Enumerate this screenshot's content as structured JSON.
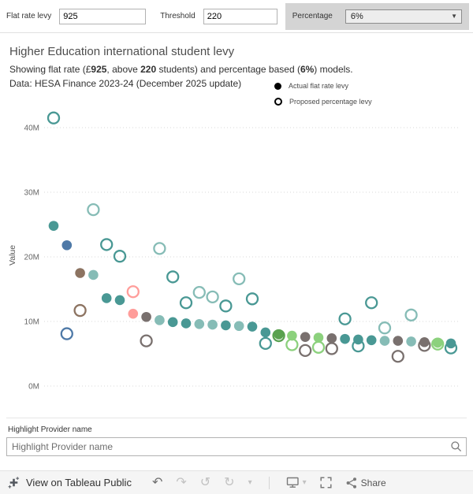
{
  "param_bar": {
    "flat_rate": {
      "label": "Flat rate levy",
      "value": "925"
    },
    "threshold": {
      "label": "Threshold",
      "value": "220"
    },
    "percentage": {
      "label": "Percentage",
      "value": "6%"
    }
  },
  "header": {
    "title": "Higher Education international student levy",
    "subtitle_segments": [
      {
        "text": "Showing flat rate (£",
        "bold": false
      },
      {
        "text": "925",
        "bold": true
      },
      {
        "text": ", above ",
        "bold": false
      },
      {
        "text": "220",
        "bold": true
      },
      {
        "text": " students) and percentage based (",
        "bold": false
      },
      {
        "text": "6%",
        "bold": true
      },
      {
        "text": ") models.",
        "bold": false
      }
    ],
    "data_note": "Data: HESA Finance 2023-24 (December 2025 update)"
  },
  "legend": {
    "items": [
      {
        "label": "Actual flat rate levy",
        "marker": "filled"
      },
      {
        "label": "Proposed percentage levy",
        "marker": "open"
      }
    ]
  },
  "chart_data": {
    "type": "scatter",
    "title": "Higher Education international student levy",
    "xlabel": "",
    "ylabel": "Value",
    "y_unit": "M (£ millions)",
    "ylim": [
      0,
      43
    ],
    "yticks": [
      0,
      10,
      20,
      30,
      40
    ],
    "ytick_labels": [
      "0M",
      "10M",
      "20M",
      "30M",
      "40M"
    ],
    "grid": "dotted horizontal gridlines",
    "legend_position": "top-right",
    "series": [
      {
        "name": "Actual flat rate levy",
        "marker": "filled circle"
      },
      {
        "name": "Proposed percentage levy",
        "marker": "open circle"
      }
    ],
    "points": [
      {
        "actual": 24.8,
        "proposed": 41.5,
        "color": "#499894"
      },
      {
        "actual": 21.8,
        "proposed": 8.1,
        "color": "#4e79a7"
      },
      {
        "actual": 17.5,
        "proposed": 11.7,
        "color": "#8c7361"
      },
      {
        "actual": 17.2,
        "proposed": 27.3,
        "color": "#86bcb6"
      },
      {
        "actual": 13.6,
        "proposed": 21.9,
        "color": "#499894"
      },
      {
        "actual": 13.3,
        "proposed": 20.1,
        "color": "#499894"
      },
      {
        "actual": 11.2,
        "proposed": 14.6,
        "color": "#ff9d9a"
      },
      {
        "actual": 10.7,
        "proposed": 7.0,
        "color": "#79706e"
      },
      {
        "actual": 10.2,
        "proposed": 21.3,
        "color": "#86bcb6"
      },
      {
        "actual": 9.9,
        "proposed": 16.9,
        "color": "#499894"
      },
      {
        "actual": 9.7,
        "proposed": 12.9,
        "color": "#499894"
      },
      {
        "actual": 9.6,
        "proposed": 14.5,
        "color": "#86bcb6"
      },
      {
        "actual": 9.5,
        "proposed": 13.8,
        "color": "#86bcb6"
      },
      {
        "actual": 9.4,
        "proposed": 12.4,
        "color": "#499894"
      },
      {
        "actual": 9.3,
        "proposed": 16.6,
        "color": "#86bcb6"
      },
      {
        "actual": 9.2,
        "proposed": 13.5,
        "color": "#499894"
      },
      {
        "actual": 8.3,
        "proposed": 6.6,
        "color": "#499894"
      },
      {
        "actual": 8.0,
        "proposed": 7.8,
        "color": "#59a14f"
      },
      {
        "actual": 7.8,
        "proposed": 6.4,
        "color": "#8cd17d"
      },
      {
        "actual": 7.6,
        "proposed": 5.5,
        "color": "#79706e"
      },
      {
        "actual": 7.5,
        "proposed": 6.0,
        "color": "#8cd17d"
      },
      {
        "actual": 7.4,
        "proposed": 5.8,
        "color": "#79706e"
      },
      {
        "actual": 7.3,
        "proposed": 10.4,
        "color": "#499894"
      },
      {
        "actual": 7.2,
        "proposed": 6.2,
        "color": "#499894"
      },
      {
        "actual": 7.1,
        "proposed": 12.9,
        "color": "#499894"
      },
      {
        "actual": 7.0,
        "proposed": 9.0,
        "color": "#86bcb6"
      },
      {
        "actual": 7.0,
        "proposed": 4.6,
        "color": "#79706e"
      },
      {
        "actual": 6.9,
        "proposed": 11.0,
        "color": "#86bcb6"
      },
      {
        "actual": 6.8,
        "proposed": 6.3,
        "color": "#79706e"
      },
      {
        "actual": 6.7,
        "proposed": 6.5,
        "color": "#8cd17d"
      },
      {
        "actual": 6.6,
        "proposed": 5.9,
        "color": "#499894"
      }
    ]
  },
  "highlight": {
    "label": "Highlight Provider name",
    "placeholder": "Highlight Provider name"
  },
  "footer": {
    "view_link": "View on Tableau Public",
    "share_label": "Share"
  },
  "icons": {
    "select_caret": "▼",
    "undo": "↶",
    "redo": "↷",
    "revert": "↺",
    "refresh": "↻",
    "caret_down": "▾"
  }
}
